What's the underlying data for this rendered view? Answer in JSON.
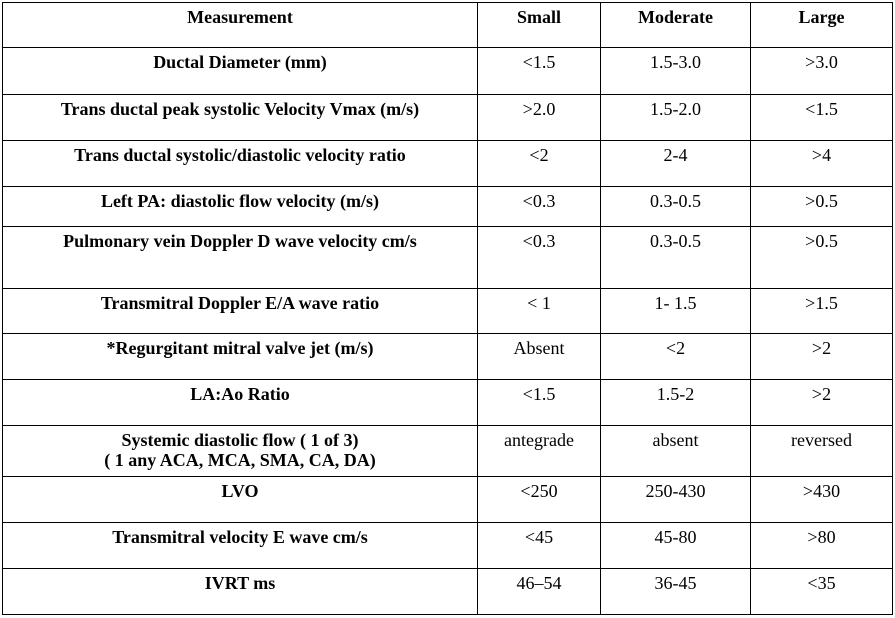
{
  "table": {
    "header": [
      "Measurement",
      "Small",
      "Moderate",
      "Large"
    ],
    "rows": [
      [
        "Ductal Diameter (mm)",
        "<1.5",
        "1.5-3.0",
        ">3.0"
      ],
      [
        "Trans ductal peak systolic Velocity Vmax (m/s)",
        ">2.0",
        "1.5-2.0",
        "<1.5"
      ],
      [
        "Trans ductal systolic/diastolic velocity ratio",
        "<2",
        "2-4",
        ">4"
      ],
      [
        "Left PA: diastolic flow velocity (m/s)",
        "<0.3",
        "0.3-0.5",
        ">0.5"
      ],
      [
        "Pulmonary vein Doppler D wave velocity cm/s",
        "<0.3",
        "0.3-0.5",
        ">0.5"
      ],
      [
        "Transmitral Doppler E/A wave ratio",
        "< 1",
        "1- 1.5",
        ">1.5"
      ],
      [
        "*Regurgitant mitral valve jet (m/s)",
        "Absent",
        "<2",
        ">2"
      ],
      [
        "LA:Ao Ratio",
        "<1.5",
        "1.5-2",
        ">2"
      ],
      [
        "Systemic diastolic flow ( 1 of 3)\n( 1 any ACA, MCA, SMA, CA, DA)",
        "antegrade",
        "absent",
        "reversed"
      ],
      [
        "LVO",
        "<250",
        "250-430",
        ">430"
      ],
      [
        "Transmitral velocity E wave cm/s",
        "<45",
        "45-80",
        ">80"
      ],
      [
        "IVRT ms",
        "46–54",
        "36-45",
        "<35"
      ]
    ]
  }
}
